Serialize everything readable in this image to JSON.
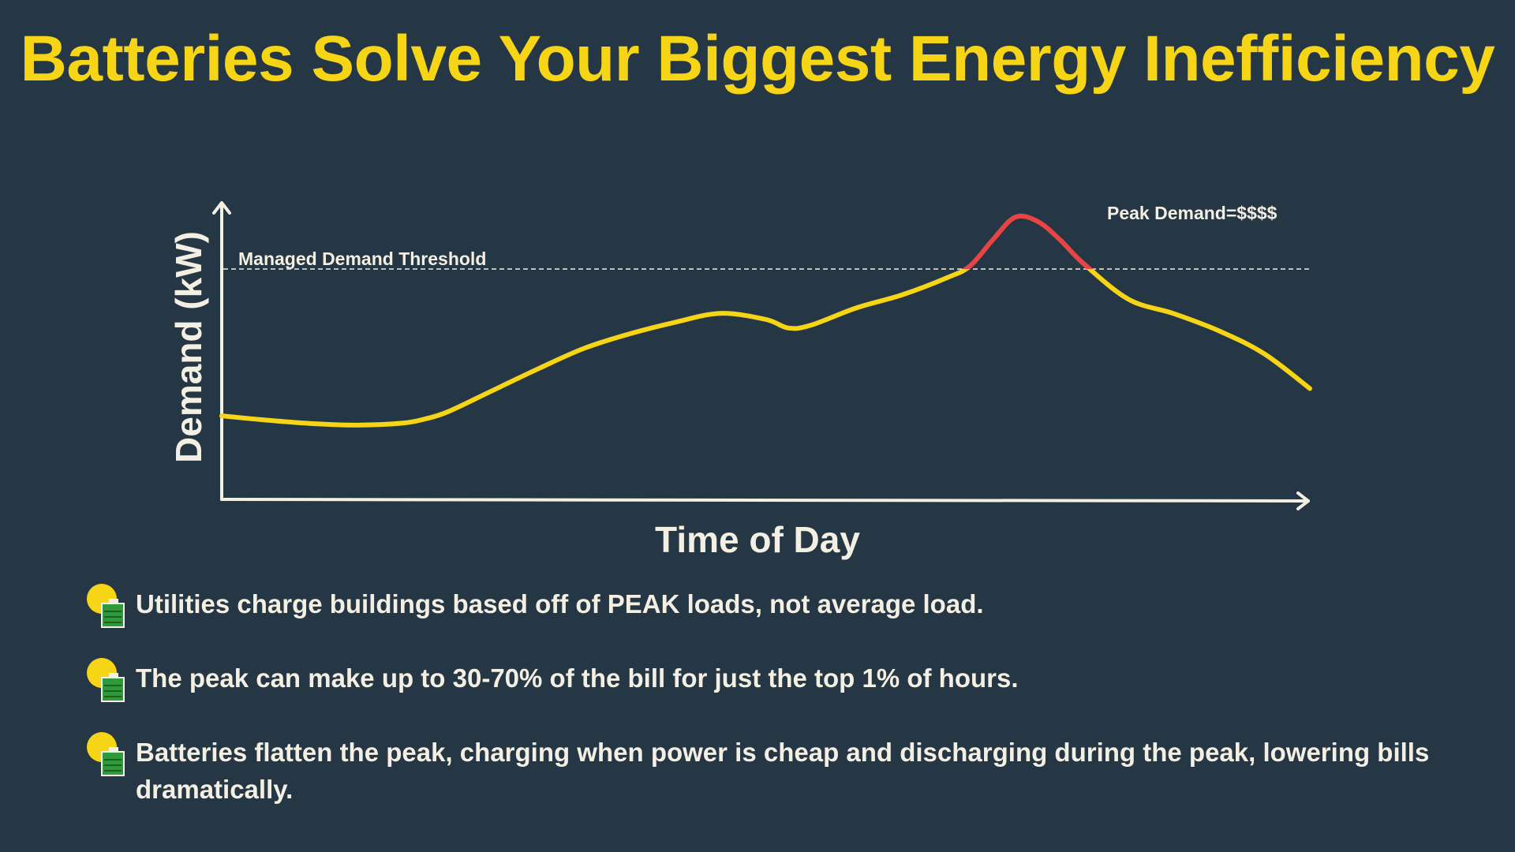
{
  "title": "Batteries Solve Your Biggest Energy Inefficiency",
  "colors": {
    "background": "#253645",
    "title": "#F6D516",
    "curve": "#F6D516",
    "peak_curve": "#E84444",
    "axis": "#F3EFE2",
    "text": "#F3EFE2"
  },
  "chart_data": {
    "type": "line",
    "title": "",
    "xlabel": "Time of Day",
    "ylabel": "Demand (kW)",
    "x_ticks": false,
    "y_ticks": false,
    "xlim": [
      0,
      24
    ],
    "ylim": [
      0,
      100
    ],
    "grid": false,
    "series": [
      {
        "x": [
          0,
          1,
          2,
          3,
          4,
          4.5,
          5,
          6,
          7,
          8,
          9,
          10,
          11,
          12,
          12.5,
          13,
          14,
          15,
          16,
          16.5,
          17,
          17.5,
          18,
          18.5,
          19,
          20,
          21,
          22,
          23,
          24
        ],
        "y": [
          29,
          27.5,
          26.3,
          25.8,
          26.5,
          28,
          30.5,
          38,
          45.5,
          52.5,
          57.5,
          61.5,
          64.6,
          62.5,
          59.5,
          60.5,
          66.5,
          71,
          77,
          81,
          90,
          98,
          96.5,
          90,
          82,
          69.5,
          64.5,
          58.5,
          50.5,
          38.5
        ]
      }
    ],
    "threshold": {
      "label": "Managed Demand Threshold",
      "y": 80
    },
    "peak_annotation": {
      "label": "Peak Demand=$$$$"
    }
  },
  "bullets": [
    {
      "text": "Utilities charge buildings based off of PEAK loads, not average load."
    },
    {
      "text": "The peak can make up to 30-70% of the bill for just the top 1% of hours."
    },
    {
      "text": "Batteries flatten the peak, charging when power is cheap and discharging during the peak, lowering bills dramatically."
    }
  ]
}
